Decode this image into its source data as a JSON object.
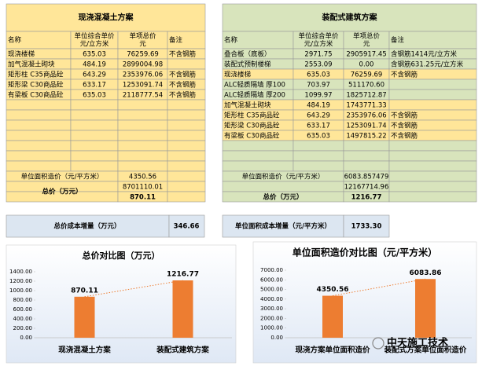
{
  "left_table": {
    "title": "现浇混凝土方案",
    "header": [
      "名称",
      [
        "单位综合单价",
        "元/立方米"
      ],
      [
        "单项总价",
        "元"
      ],
      "备注"
    ],
    "rows": [
      {
        "name": "现浇楼梯",
        "price": "635.03",
        "total": "76259.69",
        "note": "不含钢筋"
      },
      {
        "name": "加气混凝土砌块",
        "price": "484.19",
        "total": "2899004.98"
      },
      {
        "name": "矩形柱 C35商品砼",
        "price": "643.29",
        "total": "2353976.06",
        "note": "不含钢筋"
      },
      {
        "name": "矩形梁 C30商品砼",
        "price": "633.17",
        "total": "1253091.74",
        "note": "不含钢筋"
      },
      {
        "name": "有梁板 C30商品砼",
        "price": "635.03",
        "total": "2118777.54",
        "note": "不含钢筋"
      }
    ],
    "unit_cost_label": "单位面积造价（元/平方米）",
    "unit_cost": "4350.56",
    "total_yuan": "8701110.01",
    "total_label": "总价（万元）",
    "total_wan": "870.11"
  },
  "right_table": {
    "title": "装配式建筑方案",
    "header": [
      "名称",
      [
        "单位综合单价",
        "元/立方米"
      ],
      [
        "单项总价",
        "元"
      ],
      "备注"
    ],
    "rows": [
      {
        "name": "叠合板（底板）",
        "price": "2971.75",
        "total": "2905917.45",
        "note": "含钢筋1414元/立方米"
      },
      {
        "name": "装配式预制楼梯",
        "price": "2553.09",
        "total": "0.00",
        "note": "含钢筋631.25元/立方米"
      },
      {
        "name": "现浇楼梯",
        "price": "635.03",
        "total": "76259.69",
        "note": "不含钢筋"
      },
      {
        "name": "ALC轻质隔墙 厚100",
        "price": "703.97",
        "total": "511170.60"
      },
      {
        "name": "ALC轻质隔墙 厚200",
        "price": "1099.97",
        "total": "1825712.87"
      },
      {
        "name": "加气混凝土砌块",
        "price": "484.19",
        "total": "1743771.33"
      },
      {
        "name": "矩形柱 C35商品砼",
        "price": "643.29",
        "total": "2353976.06",
        "note": "不含钢筋"
      },
      {
        "name": "矩形梁 C30商品砼",
        "price": "633.17",
        "total": "1253091.74",
        "note": "不含钢筋"
      },
      {
        "name": "有梁板 C30商品砼",
        "price": "635.03",
        "total": "1497815.22",
        "note": "不含钢筋"
      }
    ],
    "unit_cost_label": "单位面积造价（元/平方米）",
    "unit_cost": "6083.857479",
    "total_yuan": "12167714.96",
    "total_label": "总价（万元）",
    "total_wan": "1216.77"
  },
  "summary": {
    "left_label": "总价成本增量（万元）",
    "left_value": "346.66",
    "right_label": "单位面积成本增量（元/平方米）",
    "right_value": "1733.30"
  },
  "chart_data": [
    {
      "type": "bar",
      "title": "总价对比图（万元）",
      "categories": [
        "现浇混凝土方案",
        "装配式建筑方案"
      ],
      "values": [
        870.11,
        1216.77
      ],
      "color": "#ed7d31",
      "ylim": [
        0,
        1400
      ],
      "yticks": [
        {
          "value": 0,
          "label": "0.00"
        },
        {
          "value": 200,
          "label": "200.00"
        },
        {
          "value": 400,
          "label": "400.00"
        },
        {
          "value": 600,
          "label": "600.00"
        },
        {
          "value": 800,
          "label": "800.00"
        },
        {
          "value": 1000,
          "label": "1000.00"
        },
        {
          "value": 1200,
          "label": "1200.00"
        },
        {
          "value": 1400,
          "label": "1400.00"
        }
      ],
      "trendline": true
    },
    {
      "type": "bar",
      "title": "单位面积造价对比图（元/平方米）",
      "categories": [
        "现浇方案单位面积造价",
        "装配式方案单位面积造价"
      ],
      "values": [
        4350.56,
        6083.86
      ],
      "color": "#ed7d31",
      "ylim": [
        0,
        7000
      ],
      "yticks": [
        {
          "value": 0,
          "label": "0.00"
        },
        {
          "value": 1000,
          "label": "1000.00"
        },
        {
          "value": 2000,
          "label": "2000.00"
        },
        {
          "value": 3000,
          "label": "3000.00"
        },
        {
          "value": 4000,
          "label": "4000.00"
        },
        {
          "value": 5000,
          "label": "5000.00"
        },
        {
          "value": 6000,
          "label": "6000.00"
        },
        {
          "value": 7000,
          "label": "7000.00"
        }
      ],
      "trendline": true
    }
  ],
  "watermark": "中天施工技术"
}
